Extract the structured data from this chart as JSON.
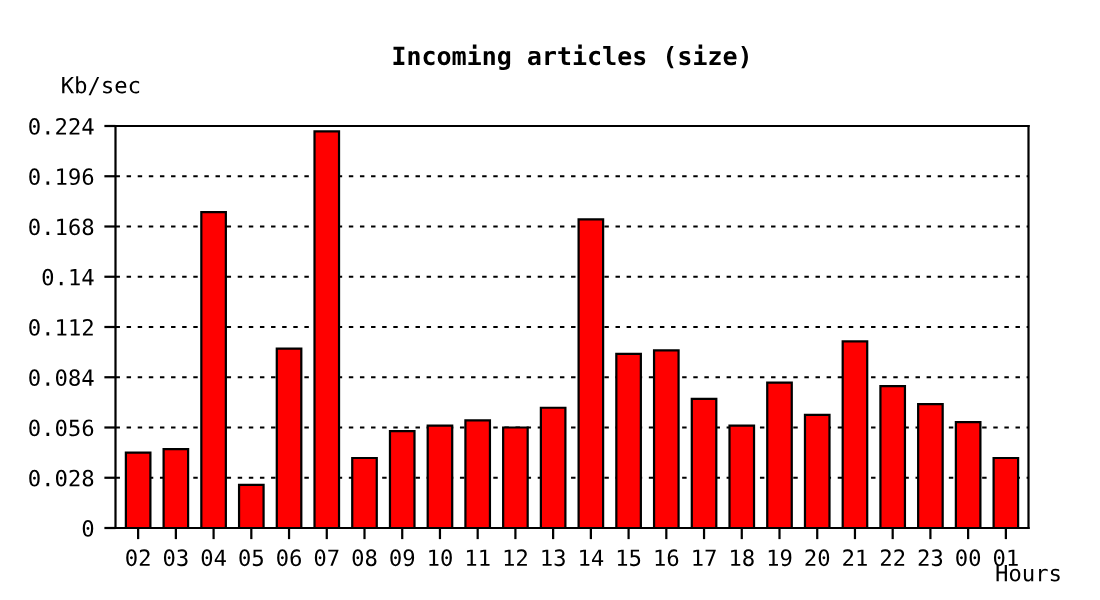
{
  "chart_data": {
    "type": "bar",
    "title": "Incoming articles (size)",
    "ylabel": "Kb/sec",
    "xlabel": "Hours",
    "categories": [
      "02",
      "03",
      "04",
      "05",
      "06",
      "07",
      "08",
      "09",
      "10",
      "11",
      "12",
      "13",
      "14",
      "15",
      "16",
      "17",
      "18",
      "19",
      "20",
      "21",
      "22",
      "23",
      "00",
      "01"
    ],
    "values": [
      0.042,
      0.044,
      0.176,
      0.024,
      0.1,
      0.221,
      0.039,
      0.054,
      0.057,
      0.06,
      0.056,
      0.067,
      0.172,
      0.097,
      0.099,
      0.072,
      0.057,
      0.081,
      0.063,
      0.104,
      0.079,
      0.069,
      0.059,
      0.039
    ],
    "color": "#ff0000",
    "ylim": [
      0,
      0.224
    ],
    "yticks": [
      0,
      0.028,
      0.056,
      0.084,
      0.112,
      0.14,
      0.168,
      0.196,
      0.224
    ],
    "grid": "y"
  }
}
